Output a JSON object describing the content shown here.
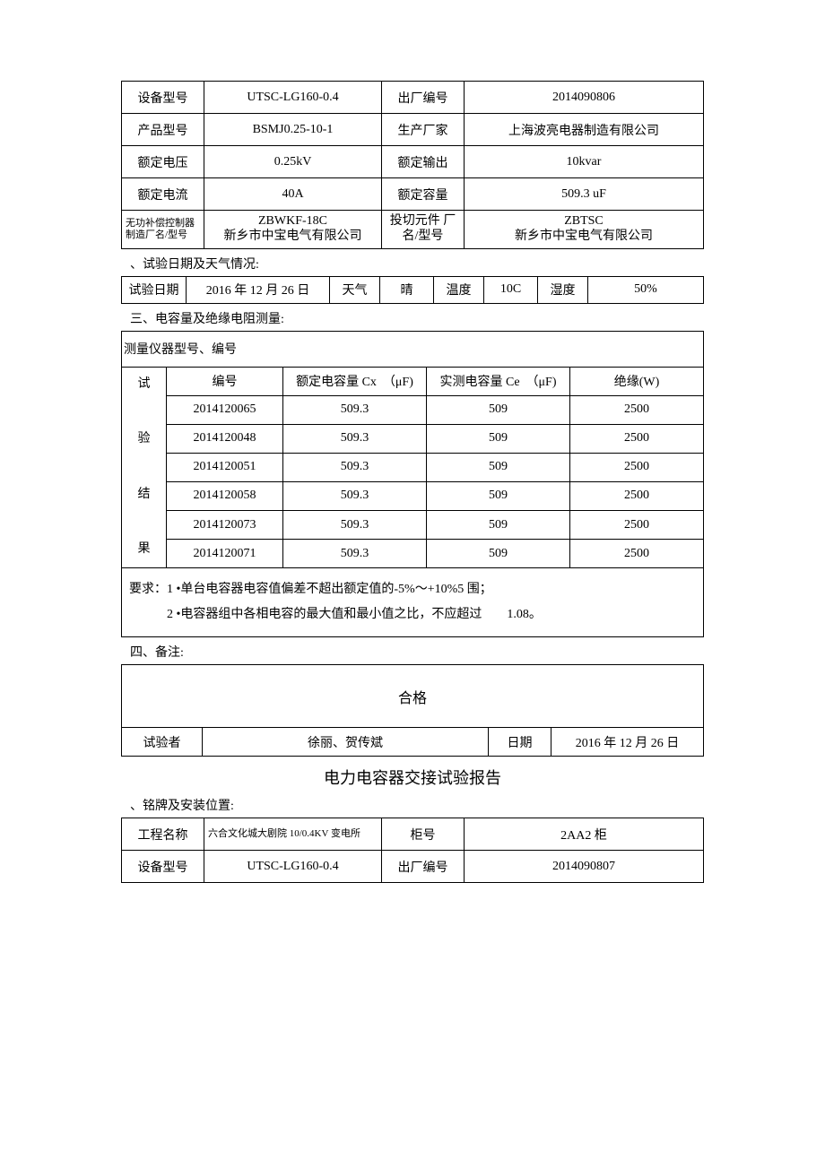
{
  "equip1": {
    "cols": {
      "model_lbl": "设备型号",
      "model": "UTSC-LG160-0.4",
      "serial_lbl": "出厂编号",
      "serial": "2014090806",
      "prod_lbl": "产品型号",
      "prod": "BSMJ0.25-10-1",
      "mfr_lbl": "生产厂家",
      "mfr": "上海波亮电器制造有限公司",
      "volt_lbl": "额定电压",
      "volt": "0.25kV",
      "output_lbl": "额定输出",
      "output": "10kvar",
      "curr_lbl": "额定电流",
      "curr": "40A",
      "cap_lbl": "额定容量",
      "cap": "509.3 uF",
      "ctrl_lbl_l1": "无功补偿控制器",
      "ctrl_lbl_l2": "制造厂名/型号",
      "ctrl_l1": "ZBWKF-18C",
      "ctrl_l2": "新乡市中宝电气有限公司",
      "sw_lbl_l1": "投切元件 厂",
      "sw_lbl_l2": "名/型号",
      "sw_l1": "ZBTSC",
      "sw_l2": "新乡市中宝电气有限公司"
    }
  },
  "sec2_label": "、试验日期及天气情况:",
  "date_row": {
    "date_lbl": "试验日期",
    "date": "2016 年 12 月 26 日",
    "weather_lbl": "天气",
    "weather": "晴",
    "temp_lbl": "温度",
    "temp": "10C",
    "humid_lbl": "湿度",
    "humid": "50%"
  },
  "sec3_label": "三、电容量及绝缘电阻测量:",
  "meas": {
    "instr_label": "测量仪器型号、编号",
    "side_label": "试 验 结 果",
    "hdr": {
      "id": "编号",
      "cx": "额定电容量 Cx　（μF)",
      "ce": "实测电容量 Ce　（μF)",
      "ins": "绝缘(W)"
    },
    "rows": [
      {
        "id": "2014120065",
        "cx": "509.3",
        "ce": "509",
        "ins": "2500"
      },
      {
        "id": "2014120048",
        "cx": "509.3",
        "ce": "509",
        "ins": "2500"
      },
      {
        "id": "2014120051",
        "cx": "509.3",
        "ce": "509",
        "ins": "2500"
      },
      {
        "id": "2014120058",
        "cx": "509.3",
        "ce": "509",
        "ins": "2500"
      },
      {
        "id": "2014120073",
        "cx": "509.3",
        "ce": "509",
        "ins": "2500"
      },
      {
        "id": "2014120071",
        "cx": "509.3",
        "ce": "509",
        "ins": "2500"
      }
    ],
    "req1": "要求：1 •单台电容器电容值偏差不超出额定值的-5%～+10%5 围；",
    "req2": "　　　2 •电容器组中各相电容的最大值和最小值之比，不应超过　　1.08。"
  },
  "sec4_label": "四、备注:",
  "result": {
    "pass": "合格",
    "tester_lbl": "试验者",
    "tester": "徐丽、贺传斌",
    "date_lbl": "日期",
    "date": "2016 年 12 月 26 日"
  },
  "title2": "电力电容器交接试验报告",
  "sec_nameplate": "、铭牌及安装位置:",
  "equip2": {
    "proj_lbl": "工程名称",
    "proj": "六合文化城大剧院 10/0.4KV 变电所",
    "cab_lbl": "柜号",
    "cab": "2AA2 柜",
    "model_lbl": "设备型号",
    "model": "UTSC-LG160-0.4",
    "serial_lbl": "出厂编号",
    "serial": "2014090807"
  }
}
